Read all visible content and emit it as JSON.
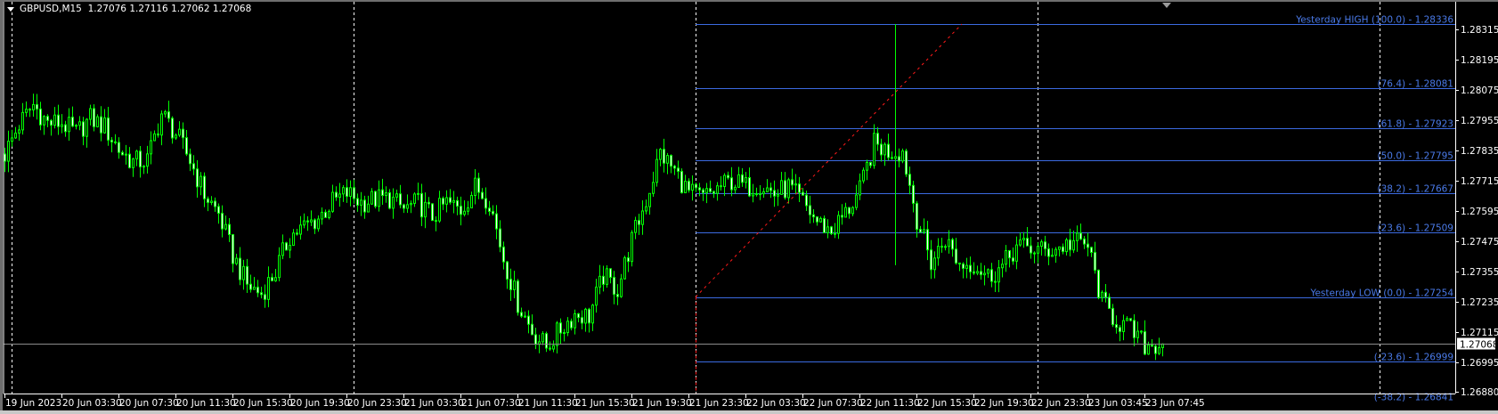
{
  "header": {
    "symbol": "GBPUSD,M15",
    "ohlc": "1.27076 1.27116 1.27062 1.27068"
  },
  "colors": {
    "background": "#000000",
    "candle": "#00ff00",
    "bear_fill": "#ffffff",
    "bull_fill": "#000000",
    "fib": "#3b6ae0",
    "fib_text": "#4a7ae8",
    "trendline": "#ff1a1a",
    "price_line": "#8c8c8c",
    "separator": "#ffffff"
  },
  "chart_data": {
    "type": "candlestick",
    "timeframe": "M15",
    "first_bar": "19 Jun 2023 23:30",
    "hourly_closes": [
      1.27821,
      1.27937,
      1.28015,
      1.27944,
      1.27944,
      1.27902,
      1.27962,
      1.27927,
      1.27839,
      1.27789,
      1.27796,
      1.2798,
      1.27902,
      1.27796,
      1.27662,
      1.27585,
      1.27419,
      1.27302,
      1.27267,
      1.27355,
      1.27496,
      1.27532,
      1.27567,
      1.2763,
      1.27666,
      1.2763,
      1.27641,
      1.27645,
      1.27602,
      1.27627,
      1.27574,
      1.27627,
      1.27599,
      1.2769,
      1.27637,
      1.27408,
      1.27232,
      1.27119,
      1.27055,
      1.27126,
      1.27186,
      1.27179,
      1.27337,
      1.27285,
      1.27479,
      1.27637,
      1.27825,
      1.27754,
      1.27666,
      1.27648,
      1.27683,
      1.27715,
      1.2769,
      1.27704,
      1.27662,
      1.2769,
      1.27627,
      1.27553,
      1.27514,
      1.27585,
      1.27673,
      1.2786,
      1.27832,
      1.27832,
      1.27567,
      1.2739,
      1.27486,
      1.27383,
      1.27387,
      1.27337,
      1.27373,
      1.27454,
      1.27447,
      1.27436,
      1.2745,
      1.27472,
      1.27457,
      1.27232,
      1.27161,
      1.27122,
      1.27062,
      1.27068
    ],
    "spike_bar": {
      "time": "22 Jun 14:00",
      "high": 1.28336,
      "low": 1.2738
    },
    "last_price": "1.27068",
    "y_ticks": [
      "1.28315",
      "1.28195",
      "1.28075",
      "1.27955",
      "1.27835",
      "1.27715",
      "1.27595",
      "1.27475",
      "1.27355",
      "1.27235",
      "1.27115",
      "1.26995",
      "1.26880"
    ],
    "y_range": [
      1.2684,
      1.2843
    ],
    "x_ticks": [
      "19 Jun 2023",
      "20 Jun 03:30",
      "20 Jun 07:30",
      "20 Jun 11:30",
      "20 Jun 15:30",
      "20 Jun 19:30",
      "20 Jun 23:30",
      "21 Jun 03:30",
      "21 Jun 07:30",
      "21 Jun 11:30",
      "21 Jun 15:30",
      "21 Jun 19:30",
      "21 Jun 23:30",
      "22 Jun 03:30",
      "22 Jun 07:30",
      "22 Jun 11:30",
      "22 Jun 15:30",
      "22 Jun 19:30",
      "22 Jun 23:30",
      "23 Jun 03:45",
      "23 Jun 07:45"
    ],
    "fibonacci": [
      {
        "label": "Yesterday HIGH (100.0) -  1.28336",
        "price": 1.28336
      },
      {
        "label": "(76.4) -  1.28081",
        "price": 1.28081
      },
      {
        "label": "(61.8) -  1.27923",
        "price": 1.27923
      },
      {
        "label": "(50.0) -  1.27795",
        "price": 1.27795
      },
      {
        "label": "(38.2) -  1.27667",
        "price": 1.27667
      },
      {
        "label": "(23.6) -  1.27509",
        "price": 1.27509
      },
      {
        "label": "Yesterday LOW (0.0) -  1.27254",
        "price": 1.27254
      },
      {
        "label": "(-23.6) -  1.26999",
        "price": 1.26999
      },
      {
        "label": "(-38.2) -  1.26841",
        "price": 1.26841
      }
    ],
    "trendline": {
      "from_price": 1.27254,
      "to_price": 1.28336,
      "style": "dashed"
    },
    "grid": false
  }
}
